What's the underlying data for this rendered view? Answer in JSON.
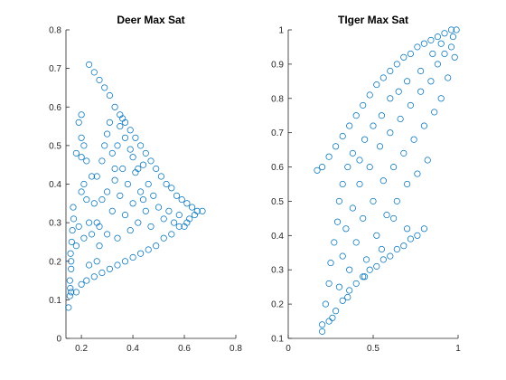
{
  "figure": {
    "background": "#ffffff",
    "marker_color": "#0072BD",
    "marker": "open-circle"
  },
  "chart_data": [
    {
      "type": "scatter",
      "title": "Deer Max Sat",
      "xlabel": "",
      "ylabel": "",
      "xlim": [
        0.14,
        0.8
      ],
      "ylim": [
        0,
        0.8
      ],
      "xticks": [
        0.2,
        0.4,
        0.6,
        0.8
      ],
      "xtick_labels": [
        "0.2",
        "0.4",
        "0.6",
        "0.8"
      ],
      "yticks": [
        0,
        0.1,
        0.2,
        0.3,
        0.4,
        0.5,
        0.6,
        0.7,
        0.8
      ],
      "ytick_labels": [
        "0",
        "0.1",
        "0.2",
        "0.3",
        "0.4",
        "0.5",
        "0.6",
        "0.7",
        "0.8"
      ],
      "grid": false,
      "box": false,
      "series": [
        {
          "color": "#0072BD",
          "points": [
            [
              0.15,
              0.08
            ],
            [
              0.155,
              0.11
            ],
            [
              0.16,
              0.12
            ],
            [
              0.155,
              0.15
            ],
            [
              0.16,
              0.18
            ],
            [
              0.158,
              0.22
            ],
            [
              0.162,
              0.25
            ],
            [
              0.165,
              0.28
            ],
            [
              0.17,
              0.31
            ],
            [
              0.168,
              0.34
            ],
            [
              0.16,
              0.2
            ],
            [
              0.157,
              0.13
            ],
            [
              0.18,
              0.12
            ],
            [
              0.2,
              0.14
            ],
            [
              0.22,
              0.15
            ],
            [
              0.25,
              0.16
            ],
            [
              0.28,
              0.17
            ],
            [
              0.31,
              0.18
            ],
            [
              0.34,
              0.19
            ],
            [
              0.37,
              0.2
            ],
            [
              0.4,
              0.21
            ],
            [
              0.43,
              0.22
            ],
            [
              0.46,
              0.23
            ],
            [
              0.49,
              0.24
            ],
            [
              0.52,
              0.26
            ],
            [
              0.55,
              0.27
            ],
            [
              0.58,
              0.29
            ],
            [
              0.61,
              0.3
            ],
            [
              0.64,
              0.32
            ],
            [
              0.67,
              0.33
            ],
            [
              0.23,
              0.71
            ],
            [
              0.25,
              0.69
            ],
            [
              0.27,
              0.67
            ],
            [
              0.29,
              0.65
            ],
            [
              0.31,
              0.63
            ],
            [
              0.33,
              0.6
            ],
            [
              0.35,
              0.58
            ],
            [
              0.37,
              0.56
            ],
            [
              0.39,
              0.54
            ],
            [
              0.41,
              0.52
            ],
            [
              0.43,
              0.5
            ],
            [
              0.45,
              0.48
            ],
            [
              0.47,
              0.46
            ],
            [
              0.49,
              0.44
            ],
            [
              0.51,
              0.42
            ],
            [
              0.53,
              0.4
            ],
            [
              0.55,
              0.39
            ],
            [
              0.57,
              0.37
            ],
            [
              0.59,
              0.36
            ],
            [
              0.61,
              0.35
            ],
            [
              0.63,
              0.34
            ],
            [
              0.65,
              0.33
            ],
            [
              0.19,
              0.56
            ],
            [
              0.2,
              0.58
            ],
            [
              0.2,
              0.52
            ],
            [
              0.21,
              0.5
            ],
            [
              0.18,
              0.48
            ],
            [
              0.2,
              0.47
            ],
            [
              0.22,
              0.46
            ],
            [
              0.21,
              0.4
            ],
            [
              0.2,
              0.38
            ],
            [
              0.22,
              0.36
            ],
            [
              0.24,
              0.42
            ],
            [
              0.25,
              0.35
            ],
            [
              0.23,
              0.3
            ],
            [
              0.19,
              0.29
            ],
            [
              0.21,
              0.26
            ],
            [
              0.18,
              0.24
            ],
            [
              0.26,
              0.42
            ],
            [
              0.26,
              0.3
            ],
            [
              0.27,
              0.24
            ],
            [
              0.28,
              0.36
            ],
            [
              0.28,
              0.46
            ],
            [
              0.3,
              0.53
            ],
            [
              0.3,
              0.27
            ],
            [
              0.32,
              0.48
            ],
            [
              0.32,
              0.33
            ],
            [
              0.33,
              0.41
            ],
            [
              0.34,
              0.5
            ],
            [
              0.34,
              0.26
            ],
            [
              0.35,
              0.37
            ],
            [
              0.36,
              0.44
            ],
            [
              0.37,
              0.32
            ],
            [
              0.37,
              0.52
            ],
            [
              0.38,
              0.4
            ],
            [
              0.39,
              0.28
            ],
            [
              0.4,
              0.47
            ],
            [
              0.4,
              0.35
            ],
            [
              0.41,
              0.43
            ],
            [
              0.42,
              0.3
            ],
            [
              0.43,
              0.38
            ],
            [
              0.44,
              0.45
            ],
            [
              0.45,
              0.33
            ],
            [
              0.46,
              0.4
            ],
            [
              0.47,
              0.29
            ],
            [
              0.48,
              0.37
            ],
            [
              0.5,
              0.34
            ],
            [
              0.52,
              0.31
            ],
            [
              0.54,
              0.33
            ],
            [
              0.56,
              0.3
            ],
            [
              0.58,
              0.32
            ],
            [
              0.6,
              0.29
            ],
            [
              0.62,
              0.31
            ],
            [
              0.35,
              0.55
            ],
            [
              0.36,
              0.57
            ],
            [
              0.31,
              0.56
            ],
            [
              0.29,
              0.5
            ],
            [
              0.24,
              0.27
            ],
            [
              0.26,
              0.2
            ],
            [
              0.23,
              0.19
            ],
            [
              0.27,
              0.29
            ],
            [
              0.3,
              0.38
            ],
            [
              0.33,
              0.44
            ],
            [
              0.39,
              0.49
            ],
            [
              0.42,
              0.44
            ],
            [
              0.44,
              0.36
            ]
          ]
        }
      ]
    },
    {
      "type": "scatter",
      "title": "TIger Max Sat",
      "xlabel": "",
      "ylabel": "",
      "xlim": [
        0,
        1
      ],
      "ylim": [
        0.1,
        1
      ],
      "xticks": [
        0,
        0.5,
        1
      ],
      "xtick_labels": [
        "0",
        "0.5",
        "1"
      ],
      "yticks": [
        0.1,
        0.2,
        0.3,
        0.4,
        0.5,
        0.6,
        0.7,
        0.8,
        0.9,
        1
      ],
      "ytick_labels": [
        "0.1",
        "0.2",
        "0.3",
        "0.4",
        "0.5",
        "0.6",
        "0.7",
        "0.8",
        "0.9",
        "1"
      ],
      "grid": false,
      "box": false,
      "series": [
        {
          "color": "#0072BD",
          "points": [
            [
              0.17,
              0.59
            ],
            [
              0.2,
              0.6
            ],
            [
              0.24,
              0.63
            ],
            [
              0.28,
              0.66
            ],
            [
              0.32,
              0.69
            ],
            [
              0.36,
              0.72
            ],
            [
              0.4,
              0.75
            ],
            [
              0.44,
              0.78
            ],
            [
              0.48,
              0.81
            ],
            [
              0.52,
              0.84
            ],
            [
              0.56,
              0.86
            ],
            [
              0.6,
              0.88
            ],
            [
              0.64,
              0.9
            ],
            [
              0.68,
              0.92
            ],
            [
              0.72,
              0.93
            ],
            [
              0.76,
              0.95
            ],
            [
              0.8,
              0.96
            ],
            [
              0.84,
              0.97
            ],
            [
              0.88,
              0.98
            ],
            [
              0.92,
              0.99
            ],
            [
              0.96,
              1.0
            ],
            [
              0.99,
              1.0
            ],
            [
              0.2,
              0.12
            ],
            [
              0.24,
              0.15
            ],
            [
              0.28,
              0.18
            ],
            [
              0.32,
              0.21
            ],
            [
              0.36,
              0.24
            ],
            [
              0.4,
              0.26
            ],
            [
              0.44,
              0.28
            ],
            [
              0.48,
              0.3
            ],
            [
              0.52,
              0.31
            ],
            [
              0.56,
              0.33
            ],
            [
              0.6,
              0.34
            ],
            [
              0.64,
              0.36
            ],
            [
              0.68,
              0.37
            ],
            [
              0.72,
              0.39
            ],
            [
              0.76,
              0.4
            ],
            [
              0.8,
              0.42
            ],
            [
              0.2,
              0.14
            ],
            [
              0.22,
              0.2
            ],
            [
              0.24,
              0.26
            ],
            [
              0.25,
              0.32
            ],
            [
              0.27,
              0.38
            ],
            [
              0.29,
              0.44
            ],
            [
              0.3,
              0.5
            ],
            [
              0.32,
              0.55
            ],
            [
              0.35,
              0.6
            ],
            [
              0.38,
              0.64
            ],
            [
              0.3,
              0.25
            ],
            [
              0.32,
              0.34
            ],
            [
              0.34,
              0.42
            ],
            [
              0.36,
              0.3
            ],
            [
              0.38,
              0.48
            ],
            [
              0.4,
              0.38
            ],
            [
              0.42,
              0.55
            ],
            [
              0.44,
              0.45
            ],
            [
              0.46,
              0.33
            ],
            [
              0.48,
              0.6
            ],
            [
              0.5,
              0.5
            ],
            [
              0.52,
              0.4
            ],
            [
              0.54,
              0.66
            ],
            [
              0.56,
              0.56
            ],
            [
              0.58,
              0.46
            ],
            [
              0.6,
              0.7
            ],
            [
              0.62,
              0.6
            ],
            [
              0.64,
              0.5
            ],
            [
              0.66,
              0.74
            ],
            [
              0.68,
              0.64
            ],
            [
              0.7,
              0.55
            ],
            [
              0.72,
              0.78
            ],
            [
              0.74,
              0.68
            ],
            [
              0.76,
              0.58
            ],
            [
              0.78,
              0.82
            ],
            [
              0.8,
              0.72
            ],
            [
              0.82,
              0.62
            ],
            [
              0.84,
              0.85
            ],
            [
              0.86,
              0.76
            ],
            [
              0.88,
              0.9
            ],
            [
              0.9,
              0.8
            ],
            [
              0.92,
              0.93
            ],
            [
              0.94,
              0.86
            ],
            [
              0.96,
              0.95
            ],
            [
              0.98,
              0.92
            ],
            [
              0.97,
              0.98
            ],
            [
              0.7,
              0.85
            ],
            [
              0.65,
              0.82
            ],
            [
              0.6,
              0.8
            ],
            [
              0.55,
              0.75
            ],
            [
              0.5,
              0.72
            ],
            [
              0.45,
              0.68
            ],
            [
              0.42,
              0.62
            ],
            [
              0.78,
              0.88
            ],
            [
              0.85,
              0.93
            ],
            [
              0.9,
              0.96
            ],
            [
              0.62,
              0.45
            ],
            [
              0.7,
              0.42
            ],
            [
              0.55,
              0.36
            ],
            [
              0.45,
              0.28
            ],
            [
              0.35,
              0.22
            ],
            [
              0.26,
              0.16
            ]
          ]
        }
      ]
    }
  ]
}
